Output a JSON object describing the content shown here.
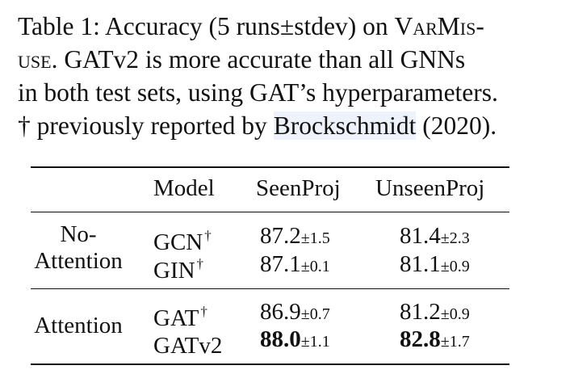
{
  "caption": {
    "line1_prefix": "Table 1: Accuracy (5 runs±stdev) on ",
    "line1_smallcaps": "VarMis-",
    "line2_smallcaps": "use",
    "line2_rest": ". GATv2 is more accurate than all GNNs",
    "line3": "in both test sets, using GAT’s hyperparameters.",
    "line4_prefix": "† previously reported by ",
    "line4_cite": "Brockschmidt",
    "line4_suffix": " (2020)."
  },
  "table": {
    "headers": {
      "model": "Model",
      "seen": "SeenProj",
      "unseen": "UnseenProj"
    },
    "groups": [
      {
        "label_line1": "No-",
        "label_line2": "Attention",
        "rows": [
          {
            "model": "GCN",
            "dagger": "†",
            "seen": "87.2",
            "seen_sd": "±1.5",
            "unseen": "81.4",
            "unseen_sd": "±2.3"
          },
          {
            "model": "GIN",
            "dagger": "†",
            "seen": "87.1",
            "seen_sd": "±0.1",
            "unseen": "81.1",
            "unseen_sd": "±0.9"
          }
        ]
      },
      {
        "label": "Attention",
        "rows": [
          {
            "model": "GAT",
            "dagger": "†",
            "seen": "86.9",
            "seen_sd": "±0.7",
            "unseen": "81.2",
            "unseen_sd": "±0.9"
          },
          {
            "model": "GATv2",
            "dagger": "",
            "seen": "88.0",
            "seen_sd": "±1.1",
            "unseen": "82.8",
            "unseen_sd": "±1.7"
          }
        ]
      }
    ]
  }
}
